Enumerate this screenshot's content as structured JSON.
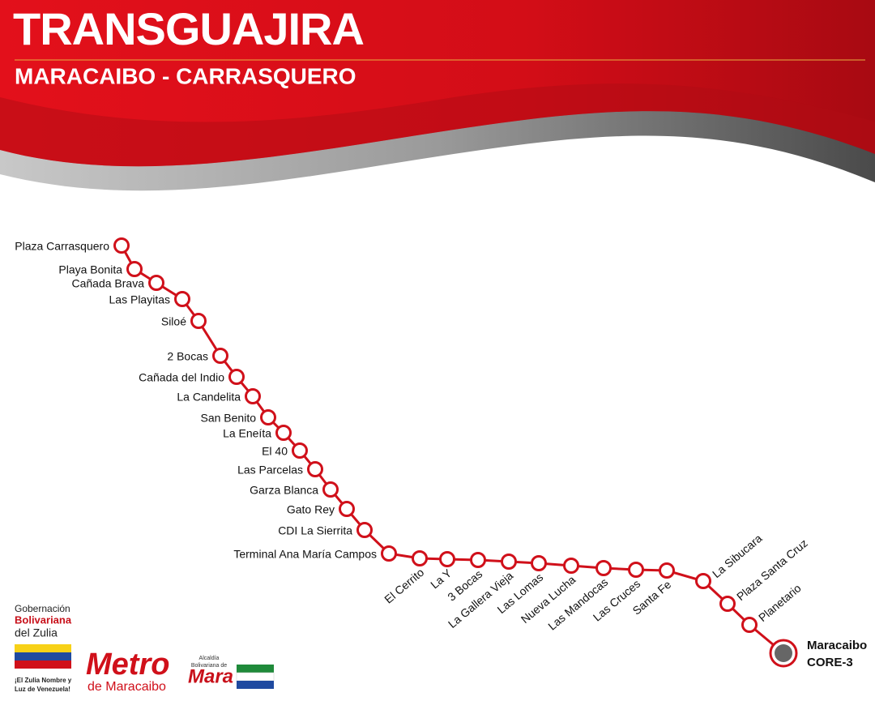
{
  "header": {
    "title": "TRANSGUAJIRA",
    "subtitle": "MARACAIBO - CARRASQUERO"
  },
  "stations": [
    "Plaza Carrasquero",
    "Playa Bonita",
    "Cañada Brava",
    "Las Playitas",
    "Siloé",
    "2 Bocas",
    "Cañada del Indio",
    "La Candelita",
    "San Benito",
    "La Eneíta",
    "El 40",
    "Las Parcelas",
    "Garza Blanca",
    "Gato Rey",
    "CDI La Sierrita",
    "Terminal Ana María Campos",
    "El Cerrito",
    "La Y",
    "3 Bocas",
    "La Gallera Vieja",
    "Las Lomas",
    "Nueva Lucha",
    "Las Mandocas",
    "Las Cruces",
    "Santa Fe",
    "La Sibucara",
    "Plaza Santa Cruz",
    "Planetario"
  ],
  "terminal": {
    "name": "Maracaibo",
    "code": "CORE-3"
  },
  "logos": {
    "gobernacion": [
      "Gobernación",
      "Bolivariana",
      "del Zulia"
    ],
    "gobernacion_motto": [
      "¡El Zulia Nombre y",
      "Luz de Venezuela!"
    ],
    "metro": [
      "Metro",
      "de Maracaibo"
    ],
    "alcaldia": [
      "Alcaldía",
      "Bolivariana de",
      "Mara"
    ]
  }
}
